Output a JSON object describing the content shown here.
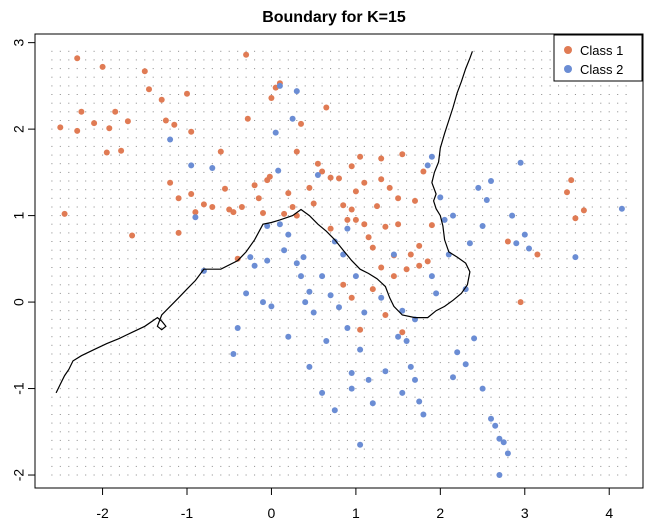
{
  "chart_data": {
    "type": "scatter",
    "title": "Boundary for K=15",
    "xlabel": "",
    "ylabel": "",
    "xlim": [
      -2.8,
      4.4
    ],
    "ylim": [
      -2.15,
      3.1
    ],
    "x_ticks": [
      -2,
      -1,
      0,
      1,
      2,
      3,
      4
    ],
    "y_ticks": [
      -2,
      -1,
      0,
      1,
      2,
      3
    ],
    "x_tick_labels": [
      "-2",
      "-1",
      "0",
      "1",
      "2",
      "3",
      "4"
    ],
    "y_tick_labels": [
      "-2",
      "-1",
      "0",
      "1",
      "2",
      "3"
    ],
    "grid_points": {
      "description": "background classification grid",
      "x_range": [
        -2.6,
        4.2
      ],
      "y_range": [
        -2.0,
        2.9
      ],
      "nx": 69,
      "ny": 50
    },
    "legend": {
      "placement": "top-right",
      "entries": [
        "Class 1",
        "Class 2"
      ]
    },
    "colors": {
      "class1": "#E07B54",
      "class2": "#6B8DD4",
      "boundary": "#000000",
      "grid": "#888888"
    },
    "series": [
      {
        "name": "Class 1",
        "points": [
          [
            -2.5,
            2.02
          ],
          [
            -2.45,
            1.02
          ],
          [
            -2.3,
            1.98
          ],
          [
            -2.3,
            2.82
          ],
          [
            -2.25,
            2.2
          ],
          [
            -2.1,
            2.07
          ],
          [
            -2.0,
            2.72
          ],
          [
            -1.95,
            1.73
          ],
          [
            -1.92,
            2.01
          ],
          [
            -1.85,
            2.2
          ],
          [
            -1.78,
            1.75
          ],
          [
            -1.7,
            2.09
          ],
          [
            -1.65,
            0.77
          ],
          [
            -1.5,
            2.67
          ],
          [
            -1.45,
            2.46
          ],
          [
            -1.3,
            2.34
          ],
          [
            -1.25,
            2.1
          ],
          [
            -1.2,
            1.38
          ],
          [
            -1.15,
            2.05
          ],
          [
            -1.1,
            1.2
          ],
          [
            -1.1,
            0.8
          ],
          [
            -1.0,
            2.41
          ],
          [
            -0.95,
            1.97
          ],
          [
            -0.9,
            1.04
          ],
          [
            -0.8,
            1.13
          ],
          [
            -0.7,
            1.1
          ],
          [
            -0.6,
            1.74
          ],
          [
            -0.55,
            1.31
          ],
          [
            -0.5,
            1.07
          ],
          [
            -0.45,
            1.04
          ],
          [
            -0.4,
            0.5
          ],
          [
            -0.35,
            1.1
          ],
          [
            -0.3,
            2.86
          ],
          [
            -0.28,
            2.12
          ],
          [
            -0.2,
            1.35
          ],
          [
            -0.15,
            1.2
          ],
          [
            -0.1,
            1.03
          ],
          [
            -0.05,
            1.41
          ],
          [
            -0.02,
            1.45
          ],
          [
            0.0,
            2.36
          ],
          [
            0.05,
            2.48
          ],
          [
            0.1,
            2.53
          ],
          [
            0.2,
            1.26
          ],
          [
            0.25,
            1.1
          ],
          [
            0.3,
            1.0
          ],
          [
            0.3,
            1.74
          ],
          [
            0.35,
            2.06
          ],
          [
            0.45,
            1.32
          ],
          [
            0.5,
            1.14
          ],
          [
            0.55,
            1.6
          ],
          [
            0.6,
            1.51
          ],
          [
            0.65,
            2.25
          ],
          [
            0.7,
            1.44
          ],
          [
            0.8,
            1.43
          ],
          [
            0.85,
            1.12
          ],
          [
            0.9,
            0.95
          ],
          [
            0.95,
            1.07
          ],
          [
            0.95,
            1.57
          ],
          [
            1.0,
            1.28
          ],
          [
            1.05,
            1.68
          ],
          [
            1.1,
            1.38
          ],
          [
            1.1,
            0.9
          ],
          [
            1.15,
            0.75
          ],
          [
            1.2,
            0.63
          ],
          [
            1.25,
            1.11
          ],
          [
            1.3,
            1.66
          ],
          [
            1.3,
            1.42
          ],
          [
            1.35,
            0.87
          ],
          [
            1.4,
            1.32
          ],
          [
            1.45,
            0.54
          ],
          [
            1.5,
            0.9
          ],
          [
            1.5,
            1.2
          ],
          [
            1.55,
            1.71
          ],
          [
            1.6,
            0.38
          ],
          [
            1.65,
            0.55
          ],
          [
            1.7,
            1.17
          ],
          [
            1.75,
            0.65
          ],
          [
            1.75,
            0.42
          ],
          [
            1.8,
            1.51
          ],
          [
            1.85,
            0.47
          ],
          [
            1.9,
            0.89
          ],
          [
            1.3,
            0.4
          ],
          [
            1.45,
            0.3
          ],
          [
            1.0,
            0.95
          ],
          [
            0.7,
            0.85
          ],
          [
            1.05,
            -0.32
          ],
          [
            0.95,
            0.05
          ],
          [
            1.2,
            0.15
          ],
          [
            1.35,
            -0.15
          ],
          [
            1.55,
            -0.35
          ],
          [
            3.15,
            0.55
          ],
          [
            3.5,
            1.27
          ],
          [
            3.55,
            1.41
          ],
          [
            3.6,
            0.97
          ],
          [
            3.7,
            1.06
          ],
          [
            2.95,
            0.0
          ],
          [
            2.8,
            0.7
          ],
          [
            0.85,
            0.2
          ],
          [
            0.15,
            1.02
          ],
          [
            -0.95,
            1.25
          ]
        ]
      },
      {
        "name": "Class 2",
        "points": [
          [
            -1.2,
            1.88
          ],
          [
            -0.95,
            1.58
          ],
          [
            -0.9,
            0.98
          ],
          [
            -0.8,
            0.36
          ],
          [
            -0.7,
            1.55
          ],
          [
            -0.45,
            -0.6
          ],
          [
            -0.4,
            -0.3
          ],
          [
            -0.3,
            0.1
          ],
          [
            -0.25,
            0.52
          ],
          [
            -0.2,
            0.42
          ],
          [
            -0.1,
            0.0
          ],
          [
            -0.05,
            0.48
          ],
          [
            0.0,
            -0.05
          ],
          [
            0.05,
            1.96
          ],
          [
            0.08,
            1.52
          ],
          [
            0.1,
            0.9
          ],
          [
            0.15,
            0.6
          ],
          [
            0.2,
            -0.4
          ],
          [
            0.25,
            2.12
          ],
          [
            0.3,
            2.44
          ],
          [
            0.35,
            0.3
          ],
          [
            0.38,
            0.52
          ],
          [
            0.4,
            0.0
          ],
          [
            0.45,
            0.12
          ],
          [
            0.5,
            -0.12
          ],
          [
            0.55,
            1.47
          ],
          [
            0.6,
            0.3
          ],
          [
            0.65,
            -0.45
          ],
          [
            0.7,
            0.08
          ],
          [
            0.75,
            0.7
          ],
          [
            0.8,
            -0.06
          ],
          [
            0.85,
            0.55
          ],
          [
            0.9,
            -0.3
          ],
          [
            0.95,
            -0.82
          ],
          [
            0.95,
            -1.0
          ],
          [
            1.0,
            0.3
          ],
          [
            1.05,
            -0.55
          ],
          [
            1.1,
            -0.12
          ],
          [
            1.15,
            -0.9
          ],
          [
            1.2,
            -1.17
          ],
          [
            1.3,
            0.05
          ],
          [
            1.35,
            -0.8
          ],
          [
            1.45,
            0.55
          ],
          [
            1.5,
            -0.4
          ],
          [
            1.55,
            -1.05
          ],
          [
            1.6,
            -0.45
          ],
          [
            1.65,
            -0.75
          ],
          [
            1.7,
            -0.9
          ],
          [
            1.75,
            -1.15
          ],
          [
            1.8,
            -1.3
          ],
          [
            1.85,
            1.58
          ],
          [
            1.9,
            1.68
          ],
          [
            1.95,
            0.1
          ],
          [
            2.0,
            1.21
          ],
          [
            2.05,
            0.95
          ],
          [
            2.1,
            0.55
          ],
          [
            2.15,
            -0.87
          ],
          [
            2.2,
            -0.58
          ],
          [
            2.3,
            -0.72
          ],
          [
            2.35,
            0.68
          ],
          [
            2.4,
            -0.42
          ],
          [
            2.45,
            1.32
          ],
          [
            2.5,
            0.88
          ],
          [
            2.55,
            1.18
          ],
          [
            2.6,
            -1.35
          ],
          [
            2.65,
            -1.43
          ],
          [
            2.7,
            -1.58
          ],
          [
            2.75,
            -1.62
          ],
          [
            2.8,
            -1.75
          ],
          [
            2.85,
            1.0
          ],
          [
            2.9,
            0.68
          ],
          [
            2.95,
            1.61
          ],
          [
            3.0,
            0.78
          ],
          [
            3.05,
            0.62
          ],
          [
            3.6,
            0.52
          ],
          [
            4.15,
            1.08
          ],
          [
            2.7,
            -2.0
          ],
          [
            2.5,
            -1.0
          ],
          [
            2.6,
            1.4
          ],
          [
            2.3,
            0.15
          ],
          [
            1.9,
            0.3
          ],
          [
            1.7,
            -0.2
          ],
          [
            0.45,
            -0.75
          ],
          [
            0.75,
            -1.25
          ],
          [
            1.05,
            -1.65
          ],
          [
            0.6,
            -1.05
          ],
          [
            0.1,
            2.5
          ],
          [
            0.3,
            0.45
          ],
          [
            0.2,
            0.78
          ],
          [
            -0.05,
            0.88
          ],
          [
            2.15,
            1.0
          ],
          [
            1.55,
            -0.1
          ],
          [
            0.9,
            0.85
          ]
        ]
      }
    ],
    "decision_boundary": [
      [
        -2.55,
        -1.05
      ],
      [
        -2.5,
        -0.95
      ],
      [
        -2.45,
        -0.85
      ],
      [
        -2.4,
        -0.78
      ],
      [
        -2.35,
        -0.68
      ],
      [
        -2.25,
        -0.62
      ],
      [
        -2.1,
        -0.55
      ],
      [
        -1.95,
        -0.48
      ],
      [
        -1.8,
        -0.42
      ],
      [
        -1.65,
        -0.35
      ],
      [
        -1.5,
        -0.28
      ],
      [
        -1.35,
        -0.18
      ],
      [
        -1.3,
        -0.22
      ],
      [
        -1.25,
        -0.28
      ],
      [
        -1.3,
        -0.32
      ],
      [
        -1.35,
        -0.28
      ],
      [
        -1.3,
        -0.15
      ],
      [
        -1.2,
        -0.05
      ],
      [
        -1.1,
        0.05
      ],
      [
        -1.0,
        0.15
      ],
      [
        -0.9,
        0.25
      ],
      [
        -0.8,
        0.38
      ],
      [
        -0.6,
        0.38
      ],
      [
        -0.4,
        0.48
      ],
      [
        -0.3,
        0.58
      ],
      [
        -0.2,
        0.72
      ],
      [
        -0.1,
        0.9
      ],
      [
        0.0,
        0.92
      ],
      [
        0.1,
        0.95
      ],
      [
        0.25,
        1.0
      ],
      [
        0.35,
        1.07
      ],
      [
        0.45,
        1.0
      ],
      [
        0.55,
        0.9
      ],
      [
        0.65,
        0.82
      ],
      [
        0.75,
        0.72
      ],
      [
        0.85,
        0.6
      ],
      [
        0.95,
        0.48
      ],
      [
        1.05,
        0.38
      ],
      [
        1.15,
        0.33
      ],
      [
        1.25,
        0.27
      ],
      [
        1.35,
        0.18
      ],
      [
        1.4,
        0.05
      ],
      [
        1.45,
        -0.05
      ],
      [
        1.55,
        -0.15
      ],
      [
        1.7,
        -0.18
      ],
      [
        1.85,
        -0.18
      ],
      [
        1.95,
        -0.1
      ],
      [
        2.05,
        -0.05
      ],
      [
        2.15,
        0.02
      ],
      [
        2.25,
        0.1
      ],
      [
        2.32,
        0.2
      ],
      [
        2.35,
        0.35
      ],
      [
        2.3,
        0.45
      ],
      [
        2.2,
        0.52
      ],
      [
        2.1,
        0.58
      ],
      [
        2.05,
        0.72
      ],
      [
        2.03,
        0.88
      ],
      [
        2.0,
        1.0
      ],
      [
        1.95,
        1.08
      ],
      [
        1.92,
        1.17
      ],
      [
        1.95,
        1.25
      ],
      [
        1.9,
        1.38
      ],
      [
        1.93,
        1.5
      ],
      [
        1.98,
        1.62
      ],
      [
        2.0,
        1.78
      ],
      [
        2.05,
        1.95
      ],
      [
        2.1,
        2.1
      ],
      [
        2.15,
        2.25
      ],
      [
        2.2,
        2.42
      ],
      [
        2.25,
        2.55
      ],
      [
        2.3,
        2.7
      ],
      [
        2.35,
        2.82
      ],
      [
        2.38,
        2.9
      ]
    ]
  }
}
